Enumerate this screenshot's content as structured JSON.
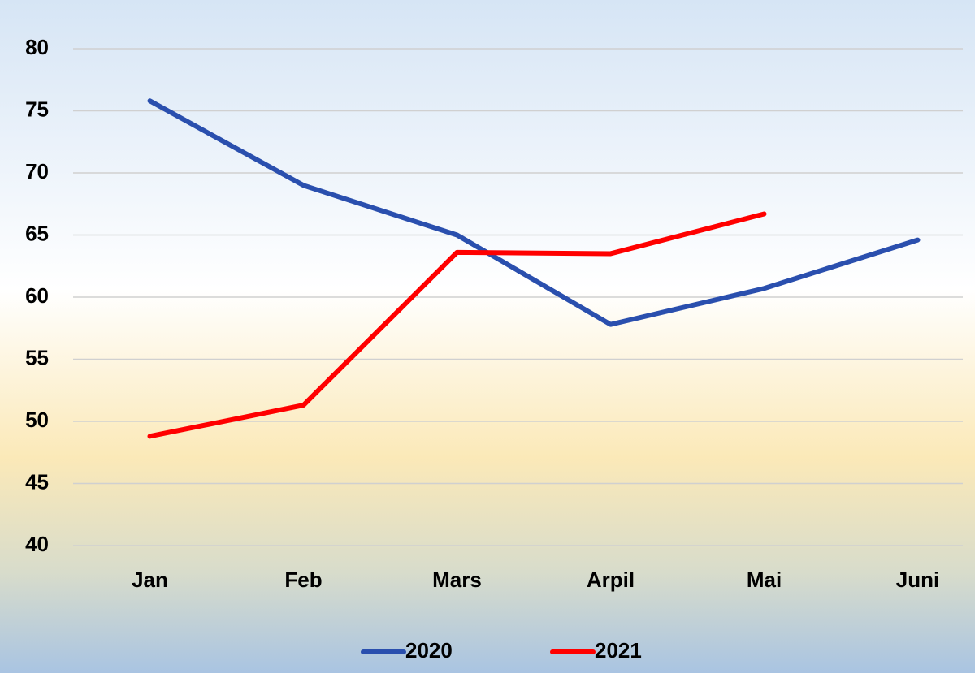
{
  "chart_data": {
    "type": "line",
    "categories": [
      "Jan",
      "Feb",
      "Mars",
      "Arpil",
      "Mai",
      "Juni"
    ],
    "series": [
      {
        "name": "2020",
        "color": "#2a4fae",
        "values": [
          75.8,
          69.0,
          65.0,
          57.8,
          60.7,
          64.6
        ]
      },
      {
        "name": "2021",
        "color": "#ff0000",
        "values": [
          48.8,
          51.3,
          63.6,
          63.5,
          66.7,
          null
        ]
      }
    ],
    "ylim": [
      40,
      80
    ],
    "yticks": [
      40,
      45,
      50,
      55,
      60,
      65,
      70,
      75,
      80
    ],
    "grid": true,
    "legend": "bottom"
  }
}
